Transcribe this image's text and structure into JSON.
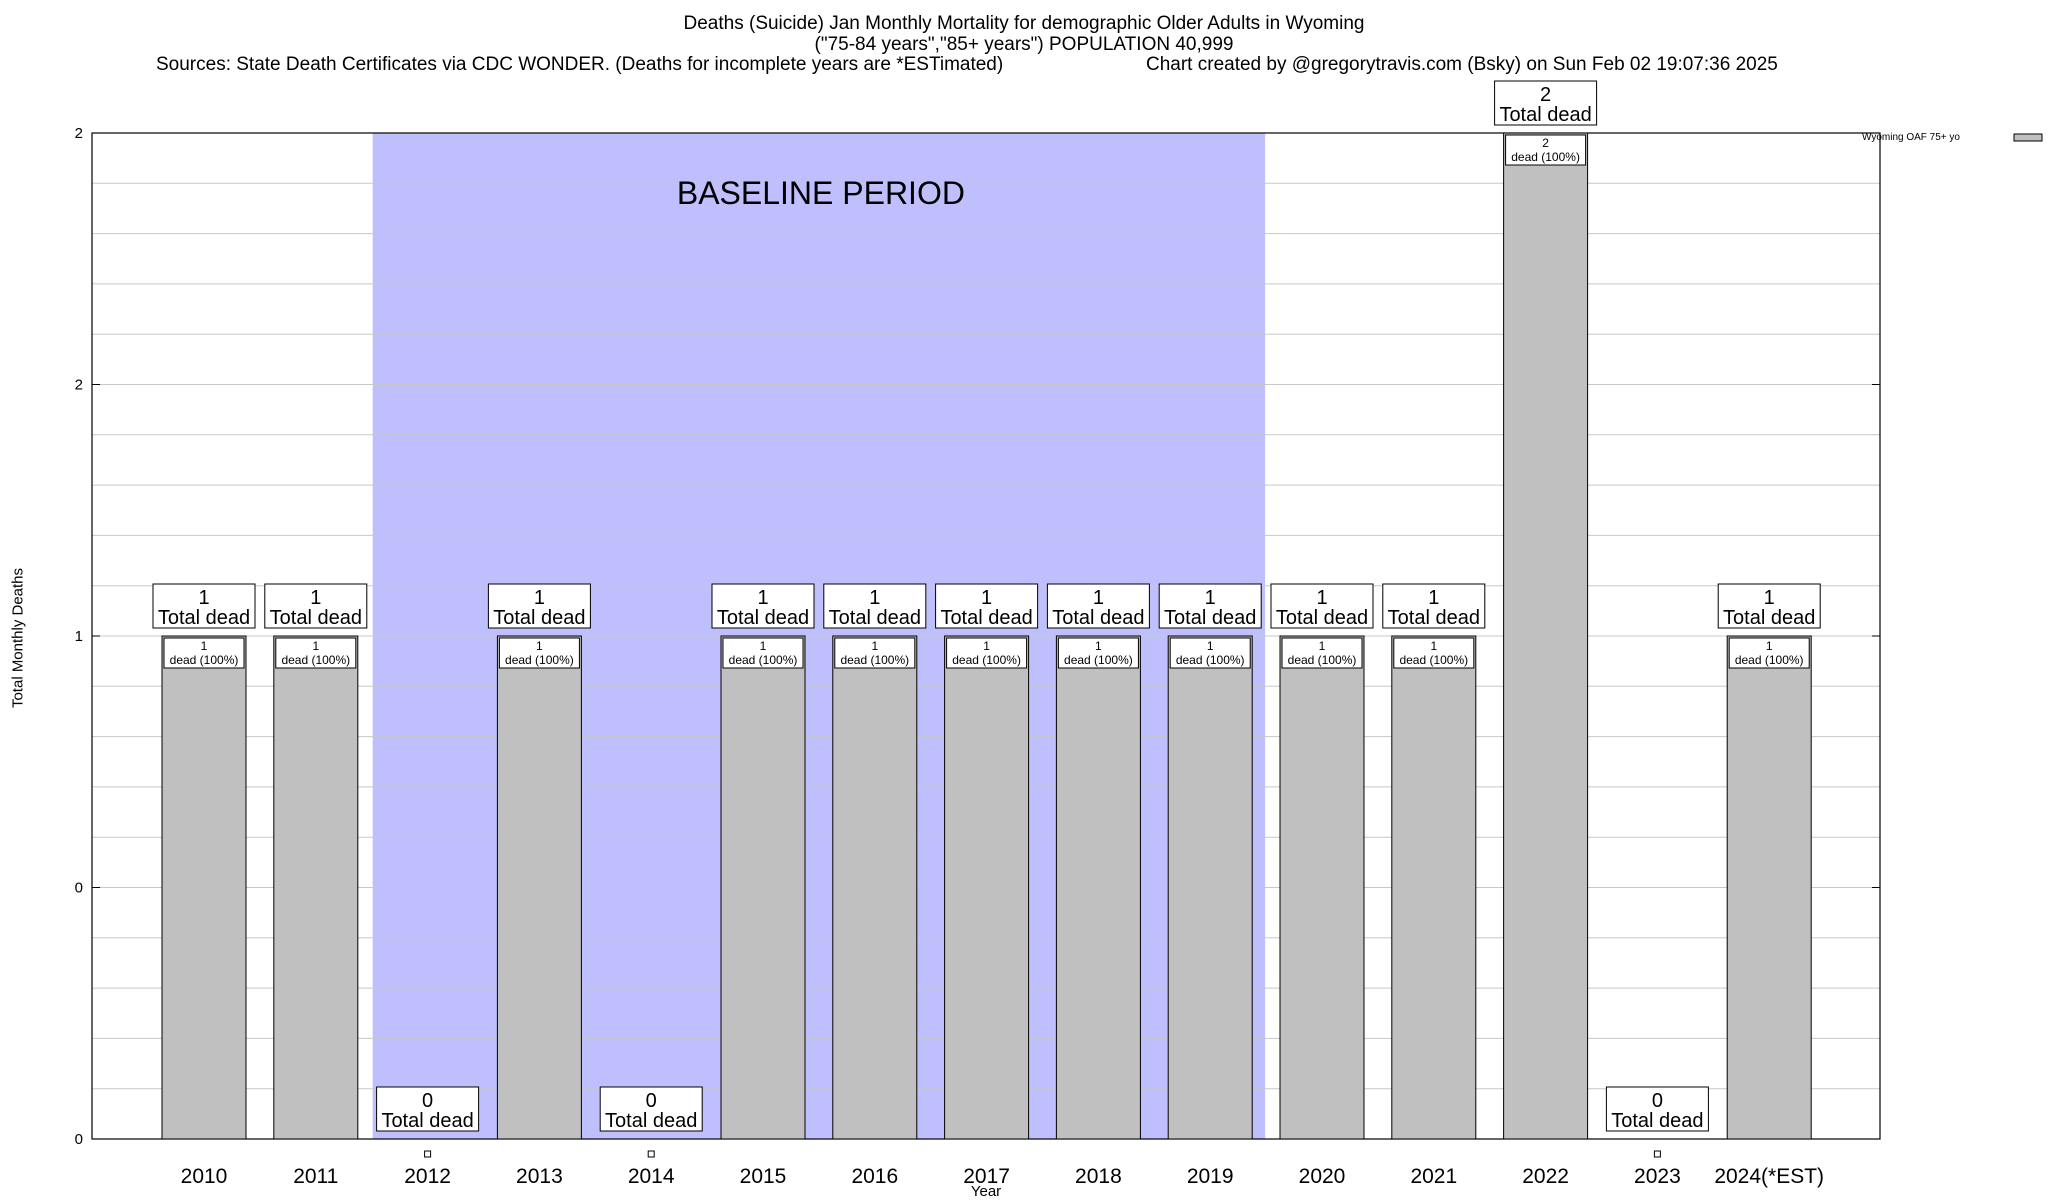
{
  "header": {
    "title_line1": "Deaths (Suicide) Jan Monthly Mortality for demographic Older Adults in Wyoming",
    "title_line2": "(\"75-84 years\",\"85+ years\") POPULATION 40,999",
    "sources": "Sources: State Death Certificates via CDC WONDER. (Deaths for incomplete years are *ESTimated)",
    "credit": "Chart created by @gregorytravis.com (Bsky) on Sun Feb 02 19:07:36 2025"
  },
  "chart_data": {
    "type": "bar",
    "title": "Deaths (Suicide) Jan Monthly Mortality for demographic Older Adults in Wyoming",
    "xlabel": "Year",
    "ylabel": "Total Monthly Deaths",
    "ylim": [
      0,
      2
    ],
    "y_tick_labels": [
      "0",
      "0",
      "1",
      "2",
      "2"
    ],
    "categories": [
      "2010",
      "2011",
      "2012",
      "2013",
      "2014",
      "2015",
      "2016",
      "2017",
      "2018",
      "2019",
      "2020",
      "2021",
      "2022",
      "2023",
      "2024(*EST)"
    ],
    "series": [
      {
        "name": "Wyoming OAF 75+ yo",
        "values": [
          1,
          1,
          0,
          1,
          0,
          1,
          1,
          1,
          1,
          1,
          1,
          1,
          2,
          0,
          1
        ]
      }
    ],
    "total_label": "Total dead",
    "inner_label": "dead (100%)",
    "baseline": {
      "label": "BASELINE PERIOD",
      "start": "2012",
      "end": "2019"
    },
    "grid": true,
    "legend_position": "top-right",
    "colors": {
      "bar": "#c0c0c0",
      "baseline": "#bfbffe",
      "grid": "#c8c8c8"
    }
  }
}
